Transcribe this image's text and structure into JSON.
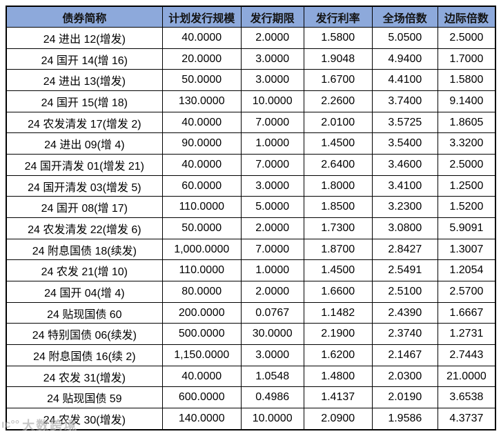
{
  "table": {
    "headers": [
      "债券简称",
      "计划发行规模",
      "发行期限",
      "发行利率",
      "全场倍数",
      "边际倍数"
    ],
    "rows": [
      [
        "24 进出 12(增发)",
        "40.0000",
        "2.0000",
        "1.5800",
        "5.0500",
        "2.5000"
      ],
      [
        "24 国开 14(增 16)",
        "20.0000",
        "3.0000",
        "1.9048",
        "4.9400",
        "1.7000"
      ],
      [
        "24 进出 13(增发)",
        "50.0000",
        "3.0000",
        "1.6700",
        "4.4100",
        "1.5800"
      ],
      [
        "24 国开 15(增 18)",
        "130.0000",
        "10.0000",
        "2.2600",
        "3.7400",
        "9.1400"
      ],
      [
        "24 农发清发 17(增发 2)",
        "40.0000",
        "7.0000",
        "2.0100",
        "3.5725",
        "1.8605"
      ],
      [
        "24 进出 09(增 4)",
        "90.0000",
        "1.0000",
        "1.4500",
        "3.5400",
        "3.3200"
      ],
      [
        "24 国开清发 01(增发 21)",
        "40.0000",
        "7.0000",
        "2.6400",
        "3.4600",
        "2.5000"
      ],
      [
        "24 国开清发 03(增发 5)",
        "60.0000",
        "3.0000",
        "1.8000",
        "3.4100",
        "1.2500"
      ],
      [
        "24 国开 08(增 17)",
        "110.0000",
        "5.0000",
        "1.8500",
        "3.2300",
        "1.5200"
      ],
      [
        "24 农发清发 22(增发 6)",
        "50.0000",
        "2.0000",
        "1.7300",
        "3.0800",
        "5.9091"
      ],
      [
        "24 附息国债 18(续发)",
        "1,000.0000",
        "7.0000",
        "1.8700",
        "2.8427",
        "1.3007"
      ],
      [
        "24 农发 21(增 10)",
        "110.0000",
        "1.0000",
        "1.4500",
        "2.5491",
        "1.2054"
      ],
      [
        "24 国开 04(增 4)",
        "80.0000",
        "2.0000",
        "1.6600",
        "2.5100",
        "2.5700"
      ],
      [
        "24 贴现国债 60",
        "200.0000",
        "0.0767",
        "1.1482",
        "2.4390",
        "1.6667"
      ],
      [
        "24 特别国债 06(续发)",
        "500.0000",
        "30.0000",
        "2.1900",
        "2.3740",
        "1.2731"
      ],
      [
        "24 附息国债 16(续 2)",
        "1,150.0000",
        "3.0000",
        "1.6200",
        "2.1467",
        "2.7443"
      ],
      [
        "24 农发 31(增发)",
        "40.0000",
        "1.0548",
        "1.4800",
        "2.0300",
        "21.0000"
      ],
      [
        "24 贴现国债 59",
        "600.0000",
        "0.4986",
        "1.4137",
        "2.0190",
        "3.6538"
      ],
      [
        "24 农发 30(增发)",
        "140.0000",
        "10.0000",
        "2.0900",
        "1.9586",
        "4.3737"
      ]
    ]
  },
  "watermark": {
    "logo": "ıc°°",
    "text": "大数跨境"
  },
  "colors": {
    "header_bg": "#8DA9DB",
    "border": "#000000",
    "header_text": "#141414",
    "cell_text": "#000000",
    "watermark_text": "#9A9A9A"
  }
}
